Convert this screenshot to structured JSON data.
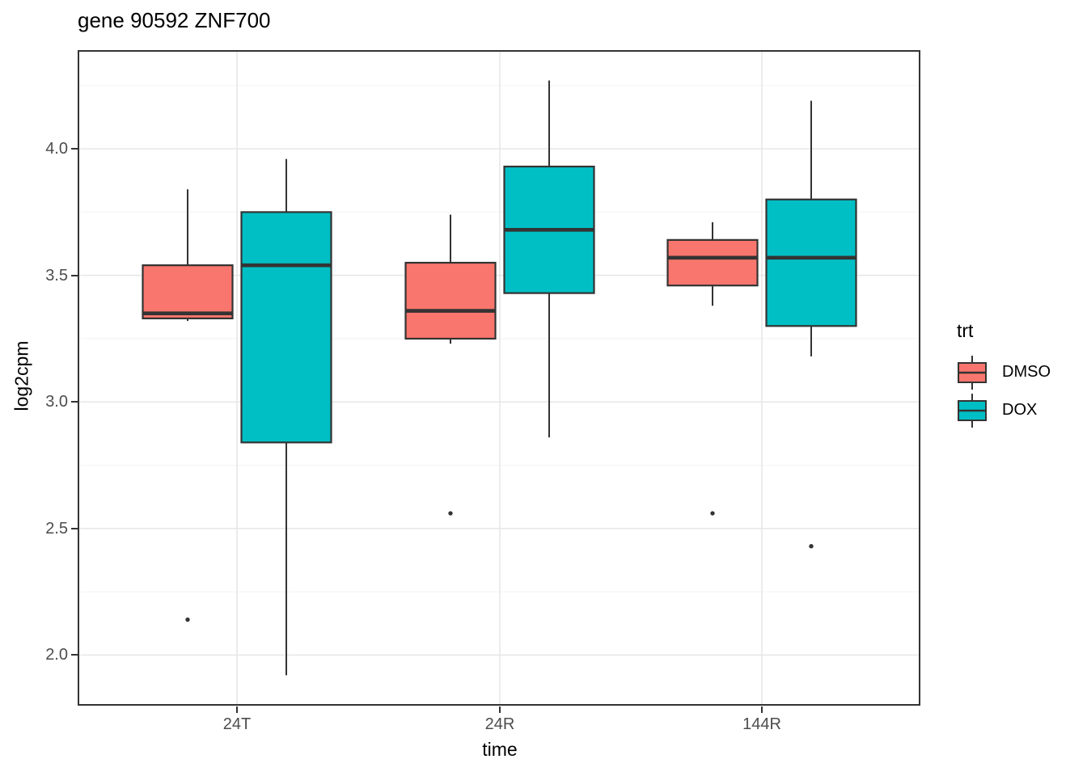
{
  "chart_data": {
    "type": "boxplot",
    "title": "gene 90592 ZNF700",
    "xlabel": "time",
    "ylabel": "log2cpm",
    "categories": [
      "24T",
      "24R",
      "144R"
    ],
    "y_ticks": [
      2.0,
      2.5,
      3.0,
      3.5,
      4.0
    ],
    "y_minor_gridlines": [
      2.25,
      2.75,
      3.25,
      3.75,
      4.25
    ],
    "ylim": [
      1.8,
      4.39
    ],
    "grid": true,
    "legend": {
      "title": "trt",
      "position": "right"
    },
    "series": [
      {
        "name": "DMSO",
        "color": "#F8766D",
        "boxes": [
          {
            "category": "24T",
            "whisker_low": 3.32,
            "q1": 3.33,
            "median": 3.35,
            "q3": 3.54,
            "whisker_high": 3.84,
            "outliers": [
              2.14
            ]
          },
          {
            "category": "24R",
            "whisker_low": 3.23,
            "q1": 3.25,
            "median": 3.36,
            "q3": 3.55,
            "whisker_high": 3.74,
            "outliers": [
              2.56
            ]
          },
          {
            "category": "144R",
            "whisker_low": 3.38,
            "q1": 3.46,
            "median": 3.57,
            "q3": 3.64,
            "whisker_high": 3.71,
            "outliers": [
              2.56
            ]
          }
        ]
      },
      {
        "name": "DOX",
        "color": "#00BFC4",
        "boxes": [
          {
            "category": "24T",
            "whisker_low": 1.92,
            "q1": 2.84,
            "median": 3.54,
            "q3": 3.75,
            "whisker_high": 3.96,
            "outliers": []
          },
          {
            "category": "24R",
            "whisker_low": 2.86,
            "q1": 3.43,
            "median": 3.68,
            "q3": 3.93,
            "whisker_high": 4.27,
            "outliers": []
          },
          {
            "category": "144R",
            "whisker_low": 3.18,
            "q1": 3.3,
            "median": 3.57,
            "q3": 3.8,
            "whisker_high": 4.19,
            "outliers": [
              2.43
            ]
          }
        ]
      }
    ],
    "style": {
      "box_stroke": "#333333",
      "median_stroke": "#333333",
      "outlier_color": "#333333",
      "grid_major": "#e6e6e6",
      "grid_minor": "#f2f2f2",
      "panel_border": "#333333",
      "tick_label_color": "#4d4d4d",
      "text_color": "#000000",
      "background": "#ffffff"
    }
  }
}
